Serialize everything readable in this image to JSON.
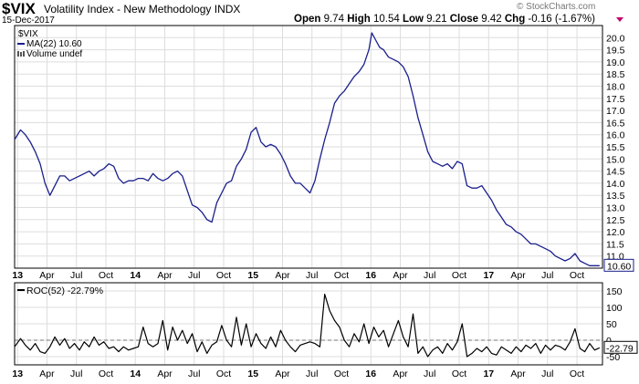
{
  "header": {
    "symbol": "$VIX",
    "name": "Volatility Index - New Methodology INDX",
    "date": "15-Dec-2017",
    "open_label": "Open",
    "open": "9.74",
    "high_label": "High",
    "high": "10.54",
    "low_label": "Low",
    "low": "9.21",
    "close_label": "Close",
    "close": "9.42",
    "chg_label": "Chg",
    "chg": "-0.16 (-1.67%)",
    "copyright": "© StockCharts.com"
  },
  "colors": {
    "price": "#1a1f8c",
    "ma": "#1a1f8c",
    "roc": "#000000",
    "grid": "#dddddd",
    "down": "#c0006a"
  },
  "chart_data": [
    {
      "type": "line",
      "legend": [
        {
          "text": "$VIX",
          "style": "none"
        },
        {
          "text": "MA(22) 10.60",
          "style": "line"
        },
        {
          "text": "Volume undef",
          "style": "bars"
        }
      ],
      "last_value_label": "10.60",
      "ylim": [
        10.5,
        20.5
      ],
      "y_ticks": [
        "11.0",
        "11.5",
        "12.0",
        "12.5",
        "13.0",
        "13.5",
        "14.0",
        "14.5",
        "15.0",
        "15.5",
        "16.0",
        "16.5",
        "17.0",
        "17.5",
        "18.0",
        "18.5",
        "19.0",
        "19.5",
        "20.0"
      ],
      "x_ticks": [
        {
          "label": "13",
          "m": 0,
          "bold": true
        },
        {
          "label": "Apr",
          "m": 3
        },
        {
          "label": "Jul",
          "m": 6
        },
        {
          "label": "Oct",
          "m": 9
        },
        {
          "label": "14",
          "m": 12,
          "bold": true
        },
        {
          "label": "Apr",
          "m": 15
        },
        {
          "label": "Jul",
          "m": 18
        },
        {
          "label": "Oct",
          "m": 21
        },
        {
          "label": "15",
          "m": 24,
          "bold": true
        },
        {
          "label": "Apr",
          "m": 27
        },
        {
          "label": "Jul",
          "m": 30
        },
        {
          "label": "Oct",
          "m": 33
        },
        {
          "label": "16",
          "m": 36,
          "bold": true
        },
        {
          "label": "Apr",
          "m": 39
        },
        {
          "label": "Jul",
          "m": 42
        },
        {
          "label": "Oct",
          "m": 45
        },
        {
          "label": "17",
          "m": 48,
          "bold": true
        },
        {
          "label": "Apr",
          "m": 51
        },
        {
          "label": "Jul",
          "m": 54
        },
        {
          "label": "Oct",
          "m": 57
        }
      ],
      "xlim_months": [
        -0.3,
        59.6
      ],
      "series": [
        {
          "name": "MA(22)",
          "points": [
            [
              -0.3,
              15.8
            ],
            [
              0.3,
              16.2
            ],
            [
              0.8,
              16.0
            ],
            [
              1.3,
              15.7
            ],
            [
              1.8,
              15.3
            ],
            [
              2.3,
              14.8
            ],
            [
              2.8,
              14.0
            ],
            [
              3.3,
              13.5
            ],
            [
              3.8,
              13.9
            ],
            [
              4.3,
              14.3
            ],
            [
              4.8,
              14.3
            ],
            [
              5.3,
              14.1
            ],
            [
              5.8,
              14.2
            ],
            [
              6.3,
              14.3
            ],
            [
              6.8,
              14.4
            ],
            [
              7.3,
              14.5
            ],
            [
              7.8,
              14.3
            ],
            [
              8.3,
              14.5
            ],
            [
              8.8,
              14.6
            ],
            [
              9.3,
              14.8
            ],
            [
              9.8,
              14.7
            ],
            [
              10.3,
              14.2
            ],
            [
              10.8,
              14.0
            ],
            [
              11.3,
              14.1
            ],
            [
              11.8,
              14.1
            ],
            [
              12.3,
              14.2
            ],
            [
              12.8,
              14.2
            ],
            [
              13.3,
              14.1
            ],
            [
              13.8,
              14.4
            ],
            [
              14.3,
              14.2
            ],
            [
              14.8,
              14.1
            ],
            [
              15.3,
              14.2
            ],
            [
              15.8,
              14.4
            ],
            [
              16.3,
              14.5
            ],
            [
              16.8,
              14.3
            ],
            [
              17.3,
              13.7
            ],
            [
              17.8,
              13.1
            ],
            [
              18.3,
              13.0
            ],
            [
              18.8,
              12.8
            ],
            [
              19.3,
              12.5
            ],
            [
              19.8,
              12.4
            ],
            [
              20.3,
              13.2
            ],
            [
              20.8,
              13.6
            ],
            [
              21.3,
              14.0
            ],
            [
              21.8,
              14.1
            ],
            [
              22.3,
              14.7
            ],
            [
              22.8,
              15.0
            ],
            [
              23.3,
              15.4
            ],
            [
              23.8,
              16.1
            ],
            [
              24.3,
              16.3
            ],
            [
              24.8,
              15.7
            ],
            [
              25.3,
              15.5
            ],
            [
              25.8,
              15.6
            ],
            [
              26.3,
              15.5
            ],
            [
              26.8,
              15.2
            ],
            [
              27.3,
              14.8
            ],
            [
              27.8,
              14.3
            ],
            [
              28.3,
              14.0
            ],
            [
              28.8,
              14.0
            ],
            [
              29.3,
              13.8
            ],
            [
              29.8,
              13.6
            ],
            [
              30.3,
              14.1
            ],
            [
              30.8,
              15.0
            ],
            [
              31.3,
              15.8
            ],
            [
              31.8,
              16.5
            ],
            [
              32.3,
              17.3
            ],
            [
              32.8,
              17.6
            ],
            [
              33.3,
              17.8
            ],
            [
              33.8,
              18.1
            ],
            [
              34.3,
              18.4
            ],
            [
              34.8,
              18.6
            ],
            [
              35.3,
              18.9
            ],
            [
              35.8,
              19.5
            ],
            [
              36.1,
              20.2
            ],
            [
              36.5,
              19.9
            ],
            [
              36.9,
              19.6
            ],
            [
              37.3,
              19.5
            ],
            [
              37.8,
              19.2
            ],
            [
              38.3,
              19.1
            ],
            [
              38.8,
              19.0
            ],
            [
              39.3,
              18.8
            ],
            [
              39.8,
              18.4
            ],
            [
              40.3,
              17.6
            ],
            [
              40.8,
              16.7
            ],
            [
              41.3,
              16.0
            ],
            [
              41.8,
              15.3
            ],
            [
              42.3,
              14.9
            ],
            [
              42.8,
              14.8
            ],
            [
              43.3,
              14.7
            ],
            [
              43.8,
              14.8
            ],
            [
              44.3,
              14.6
            ],
            [
              44.8,
              14.9
            ],
            [
              45.3,
              14.8
            ],
            [
              45.8,
              13.9
            ],
            [
              46.3,
              13.8
            ],
            [
              46.8,
              13.8
            ],
            [
              47.3,
              13.9
            ],
            [
              47.8,
              13.6
            ],
            [
              48.3,
              13.3
            ],
            [
              48.8,
              12.9
            ],
            [
              49.3,
              12.6
            ],
            [
              49.8,
              12.3
            ],
            [
              50.3,
              12.2
            ],
            [
              50.8,
              12.0
            ],
            [
              51.3,
              11.9
            ],
            [
              51.8,
              11.7
            ],
            [
              52.3,
              11.5
            ],
            [
              52.8,
              11.5
            ],
            [
              53.3,
              11.4
            ],
            [
              53.8,
              11.3
            ],
            [
              54.3,
              11.2
            ],
            [
              54.8,
              11.0
            ],
            [
              55.3,
              10.9
            ],
            [
              55.8,
              10.8
            ],
            [
              56.3,
              10.9
            ],
            [
              56.8,
              11.1
            ],
            [
              57.3,
              10.8
            ],
            [
              57.8,
              10.7
            ],
            [
              58.3,
              10.6
            ],
            [
              58.8,
              10.6
            ],
            [
              59.3,
              10.6
            ]
          ]
        }
      ]
    },
    {
      "type": "line",
      "legend": [
        {
          "text": "ROC(52) -22.79%",
          "style": "line"
        }
      ],
      "last_value_label": "-22.79",
      "ylim": [
        -75,
        175
      ],
      "y_ticks": [
        150,
        100,
        50,
        0,
        -50
      ],
      "zero_line": 0,
      "series": [
        {
          "name": "ROC(52)",
          "points": [
            [
              -0.3,
              -20
            ],
            [
              0.3,
              5
            ],
            [
              0.8,
              -15
            ],
            [
              1.3,
              -30
            ],
            [
              1.8,
              -10
            ],
            [
              2.3,
              -35
            ],
            [
              2.8,
              -40
            ],
            [
              3.3,
              -20
            ],
            [
              3.8,
              10
            ],
            [
              4.3,
              -15
            ],
            [
              4.8,
              5
            ],
            [
              5.3,
              -25
            ],
            [
              5.8,
              -10
            ],
            [
              6.3,
              -30
            ],
            [
              6.8,
              -5
            ],
            [
              7.3,
              -20
            ],
            [
              7.8,
              10
            ],
            [
              8.3,
              -15
            ],
            [
              8.8,
              -5
            ],
            [
              9.3,
              -25
            ],
            [
              9.8,
              -20
            ],
            [
              10.3,
              -35
            ],
            [
              10.8,
              -20
            ],
            [
              11.3,
              -30
            ],
            [
              11.8,
              -25
            ],
            [
              12.3,
              -20
            ],
            [
              12.8,
              40
            ],
            [
              13.3,
              -10
            ],
            [
              13.8,
              -20
            ],
            [
              14.3,
              -10
            ],
            [
              14.8,
              60
            ],
            [
              15.3,
              -30
            ],
            [
              15.8,
              40
            ],
            [
              16.3,
              0
            ],
            [
              16.8,
              30
            ],
            [
              17.3,
              -10
            ],
            [
              17.8,
              20
            ],
            [
              18.3,
              -35
            ],
            [
              18.8,
              -5
            ],
            [
              19.3,
              -40
            ],
            [
              19.8,
              -15
            ],
            [
              20.3,
              -5
            ],
            [
              20.8,
              45
            ],
            [
              21.3,
              0
            ],
            [
              21.8,
              -20
            ],
            [
              22.3,
              70
            ],
            [
              22.8,
              -15
            ],
            [
              23.3,
              50
            ],
            [
              23.8,
              -20
            ],
            [
              24.3,
              20
            ],
            [
              24.8,
              -10
            ],
            [
              25.3,
              -25
            ],
            [
              25.8,
              10
            ],
            [
              26.3,
              -20
            ],
            [
              26.8,
              30
            ],
            [
              27.3,
              0
            ],
            [
              27.8,
              -20
            ],
            [
              28.3,
              -35
            ],
            [
              28.8,
              -15
            ],
            [
              29.3,
              -10
            ],
            [
              29.8,
              -5
            ],
            [
              30.3,
              -10
            ],
            [
              30.8,
              -20
            ],
            [
              31.3,
              140
            ],
            [
              31.8,
              90
            ],
            [
              32.3,
              60
            ],
            [
              32.8,
              40
            ],
            [
              33.3,
              0
            ],
            [
              33.8,
              -20
            ],
            [
              34.3,
              20
            ],
            [
              34.8,
              -5
            ],
            [
              35.3,
              50
            ],
            [
              35.8,
              -10
            ],
            [
              36.3,
              40
            ],
            [
              36.8,
              10
            ],
            [
              37.3,
              30
            ],
            [
              37.8,
              -20
            ],
            [
              38.3,
              20
            ],
            [
              38.8,
              60
            ],
            [
              39.3,
              10
            ],
            [
              39.8,
              -20
            ],
            [
              40.3,
              80
            ],
            [
              40.8,
              -40
            ],
            [
              41.3,
              -20
            ],
            [
              41.8,
              -50
            ],
            [
              42.3,
              -30
            ],
            [
              42.8,
              -20
            ],
            [
              43.3,
              -40
            ],
            [
              43.8,
              -10
            ],
            [
              44.3,
              -30
            ],
            [
              44.8,
              -5
            ],
            [
              45.3,
              50
            ],
            [
              45.8,
              -50
            ],
            [
              46.3,
              -40
            ],
            [
              46.8,
              -25
            ],
            [
              47.3,
              -35
            ],
            [
              47.8,
              -20
            ],
            [
              48.3,
              -40
            ],
            [
              48.8,
              -45
            ],
            [
              49.3,
              -20
            ],
            [
              49.8,
              -30
            ],
            [
              50.3,
              -40
            ],
            [
              50.8,
              -20
            ],
            [
              51.3,
              -35
            ],
            [
              51.8,
              -15
            ],
            [
              52.3,
              -25
            ],
            [
              52.8,
              -10
            ],
            [
              53.3,
              -40
            ],
            [
              53.8,
              -15
            ],
            [
              54.3,
              -30
            ],
            [
              54.8,
              -15
            ],
            [
              55.3,
              -20
            ],
            [
              55.8,
              -30
            ],
            [
              56.3,
              -5
            ],
            [
              56.8,
              35
            ],
            [
              57.3,
              -25
            ],
            [
              57.8,
              -35
            ],
            [
              58.3,
              -10
            ],
            [
              58.8,
              -30
            ],
            [
              59.3,
              -23
            ]
          ]
        }
      ]
    }
  ]
}
